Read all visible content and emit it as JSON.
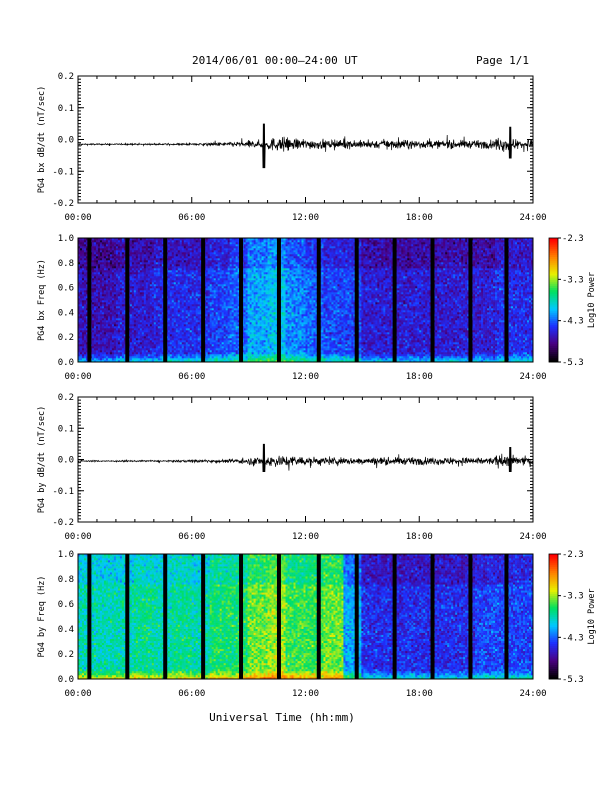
{
  "header": {
    "title": "2014/06/01   00:00–24:00 UT",
    "page": "Page 1/1"
  },
  "xlabel": "Universal Time (hh:mm)",
  "colors": {
    "trace": "#000000",
    "colormap": [
      "#000000",
      "#4a0080",
      "#1e2fff",
      "#00c8ff",
      "#00e060",
      "#e8f000",
      "#ff8000",
      "#ff0000"
    ]
  },
  "chart_data": [
    {
      "type": "line",
      "ylabel": "PG4 bx dB/dt (nT/sec)",
      "xlim": [
        0,
        24
      ],
      "ylim": [
        -0.2,
        0.2
      ],
      "x_ticks": [
        "00:00",
        "06:00",
        "12:00",
        "18:00",
        "24:00"
      ],
      "y_ticks": [
        "-0.2",
        "-0.1",
        "0.0",
        "0.1",
        "0.2"
      ],
      "baseline": -0.015,
      "grid": false,
      "activity_bursts": [
        {
          "x": 9.8,
          "y_min": -0.09,
          "y_max": 0.05
        },
        {
          "x": 22.8,
          "y_min": -0.06,
          "y_max": 0.04
        }
      ],
      "noise_amplitude_by_hour": [
        0.002,
        0.002,
        0.002,
        0.002,
        0.002,
        0.003,
        0.004,
        0.005,
        0.008,
        0.012,
        0.02,
        0.018,
        0.015,
        0.012,
        0.012,
        0.013,
        0.013,
        0.013,
        0.012,
        0.012,
        0.012,
        0.012,
        0.02,
        0.015
      ]
    },
    {
      "type": "heatmap",
      "ylabel": "PG4 bx Freq (Hz)",
      "xlim": [
        0,
        24
      ],
      "ylim": [
        0.0,
        1.0
      ],
      "x_ticks": [
        "00:00",
        "06:00",
        "12:00",
        "18:00",
        "24:00"
      ],
      "y_ticks": [
        "0.0",
        "0.2",
        "0.4",
        "0.6",
        "0.8",
        "1.0"
      ],
      "colorbar": {
        "label": "Log10 Power",
        "range": [
          -5.3,
          -2.3
        ],
        "ticks": [
          "-2.3",
          "-3.3",
          "-4.3",
          "-5.3"
        ]
      },
      "data_gaps_hours": [
        0.6,
        2.6,
        4.6,
        6.6,
        8.6,
        10.6,
        12.7,
        14.7,
        16.7,
        18.7,
        20.7,
        22.6
      ],
      "mean_log_power_by_hour": [
        -4.7,
        -4.7,
        -4.6,
        -4.6,
        -4.5,
        -4.5,
        -4.5,
        -4.4,
        -4.3,
        -4.1,
        -4.0,
        -4.2,
        -4.3,
        -4.4,
        -4.4,
        -4.6,
        -4.6,
        -4.6,
        -4.6,
        -4.6,
        -4.6,
        -4.6,
        -4.5,
        -4.5
      ]
    },
    {
      "type": "line",
      "ylabel": "PG4 by dB/dt (nT/sec)",
      "xlim": [
        0,
        24
      ],
      "ylim": [
        -0.2,
        0.2
      ],
      "x_ticks": [
        "00:00",
        "06:00",
        "12:00",
        "18:00",
        "24:00"
      ],
      "y_ticks": [
        "-0.2",
        "-0.1",
        "0.0",
        "0.1",
        "0.2"
      ],
      "baseline": -0.005,
      "grid": false,
      "activity_bursts": [
        {
          "x": 9.8,
          "y_min": -0.04,
          "y_max": 0.05
        },
        {
          "x": 22.8,
          "y_min": -0.04,
          "y_max": 0.04
        }
      ],
      "noise_amplitude_by_hour": [
        0.002,
        0.002,
        0.002,
        0.002,
        0.002,
        0.003,
        0.004,
        0.005,
        0.007,
        0.012,
        0.018,
        0.016,
        0.013,
        0.012,
        0.011,
        0.011,
        0.011,
        0.011,
        0.011,
        0.011,
        0.011,
        0.011,
        0.018,
        0.014
      ]
    },
    {
      "type": "heatmap",
      "ylabel": "PG4 by Freq (Hz)",
      "xlim": [
        0,
        24
      ],
      "ylim": [
        0.0,
        1.0
      ],
      "x_ticks": [
        "00:00",
        "06:00",
        "12:00",
        "18:00",
        "24:00"
      ],
      "y_ticks": [
        "0.0",
        "0.2",
        "0.4",
        "0.6",
        "0.8",
        "1.0"
      ],
      "colorbar": {
        "label": "Log10 Power",
        "range": [
          -5.3,
          -2.3
        ],
        "ticks": [
          "-2.3",
          "-3.3",
          "-4.3",
          "-5.3"
        ]
      },
      "data_gaps_hours": [
        0.6,
        2.6,
        4.6,
        6.6,
        8.6,
        10.6,
        12.7,
        14.7,
        16.7,
        18.7,
        20.7,
        22.6
      ],
      "mean_log_power_by_hour": [
        -3.8,
        -3.8,
        -3.8,
        -3.7,
        -3.8,
        -3.7,
        -3.8,
        -3.6,
        -3.6,
        -3.4,
        -3.3,
        -3.5,
        -3.5,
        -3.4,
        -4.1,
        -4.5,
        -4.5,
        -4.5,
        -4.5,
        -4.5,
        -4.5,
        -4.4,
        -4.4,
        -4.4
      ]
    }
  ]
}
